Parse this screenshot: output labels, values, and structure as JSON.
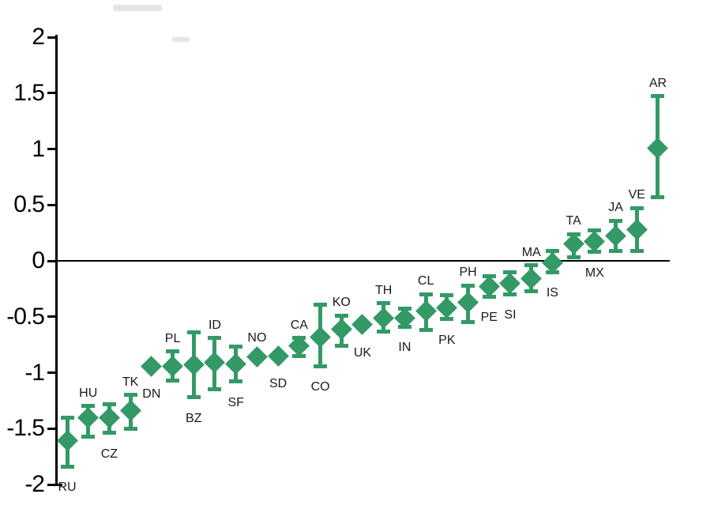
{
  "chart_data": {
    "type": "scatter",
    "title": "",
    "xlabel": "",
    "ylabel": "",
    "ylim": [
      -2,
      2
    ],
    "grid": false,
    "legend": "none",
    "zero_line": true,
    "marker": "diamond",
    "marker_color": "#339966",
    "axis_color": "#000000",
    "error_bars": "vertical confidence intervals with caps",
    "ytick_values": [
      2,
      1.5,
      1,
      0.5,
      0,
      -0.5,
      -1,
      -1.5,
      -2
    ],
    "ytick_labels": [
      "2",
      "1.5",
      "1",
      "0.5",
      "0",
      "-0.5",
      "-1",
      "-1.5",
      "-2"
    ],
    "points": [
      {
        "code": "RU",
        "value": -1.61,
        "ci_low": -1.84,
        "ci_high": -1.4,
        "label_position": "below"
      },
      {
        "code": "HU",
        "value": -1.4,
        "ci_low": -1.57,
        "ci_high": -1.3,
        "label_position": "above"
      },
      {
        "code": "CZ",
        "value": -1.4,
        "ci_low": -1.54,
        "ci_high": -1.28,
        "label_position": "below"
      },
      {
        "code": "TK",
        "value": -1.34,
        "ci_low": -1.5,
        "ci_high": -1.2,
        "label_position": "above"
      },
      {
        "code": "DN",
        "value": -0.94,
        "ci_low": null,
        "ci_high": null,
        "label_position": "below"
      },
      {
        "code": "PL",
        "value": -0.94,
        "ci_low": -1.07,
        "ci_high": -0.81,
        "label_position": "above"
      },
      {
        "code": "BZ",
        "value": -0.93,
        "ci_low": -1.22,
        "ci_high": -0.64,
        "label_position": "below"
      },
      {
        "code": "ID",
        "value": -0.91,
        "ci_low": -1.15,
        "ci_high": -0.69,
        "label_position": "above"
      },
      {
        "code": "SF",
        "value": -0.92,
        "ci_low": -1.08,
        "ci_high": -0.77,
        "label_position": "below"
      },
      {
        "code": "NO",
        "value": -0.86,
        "ci_low": null,
        "ci_high": null,
        "label_position": "above"
      },
      {
        "code": "SD",
        "value": -0.85,
        "ci_low": null,
        "ci_high": null,
        "label_position": "below"
      },
      {
        "code": "CA",
        "value": -0.76,
        "ci_low": -0.85,
        "ci_high": -0.69,
        "label_position": "above"
      },
      {
        "code": "CO",
        "value": -0.68,
        "ci_low": -0.94,
        "ci_high": -0.39,
        "label_position": "below"
      },
      {
        "code": "KO",
        "value": -0.61,
        "ci_low": -0.76,
        "ci_high": -0.49,
        "label_position": "above"
      },
      {
        "code": "UK",
        "value": -0.57,
        "ci_low": null,
        "ci_high": null,
        "label_position": "below"
      },
      {
        "code": "TH",
        "value": -0.51,
        "ci_low": -0.63,
        "ci_high": -0.38,
        "label_position": "above"
      },
      {
        "code": "IN",
        "value": -0.51,
        "ci_low": -0.59,
        "ci_high": -0.43,
        "label_position": "below"
      },
      {
        "code": "CL",
        "value": -0.45,
        "ci_low": -0.62,
        "ci_high": -0.3,
        "label_position": "above"
      },
      {
        "code": "PK",
        "value": -0.42,
        "ci_low": -0.52,
        "ci_high": -0.31,
        "label_position": "below"
      },
      {
        "code": "PH",
        "value": -0.37,
        "ci_low": -0.55,
        "ci_high": -0.22,
        "label_position": "above"
      },
      {
        "code": "PE",
        "value": -0.23,
        "ci_low": -0.32,
        "ci_high": -0.14,
        "label_position": "below"
      },
      {
        "code": "SI",
        "value": -0.2,
        "ci_low": -0.3,
        "ci_high": -0.1,
        "label_position": "below"
      },
      {
        "code": "MA",
        "value": -0.16,
        "ci_low": -0.27,
        "ci_high": -0.04,
        "label_position": "above"
      },
      {
        "code": "IS",
        "value": -0.02,
        "ci_low": -0.1,
        "ci_high": 0.09,
        "label_position": "below"
      },
      {
        "code": "TA",
        "value": 0.15,
        "ci_low": 0.03,
        "ci_high": 0.24,
        "label_position": "above"
      },
      {
        "code": "MX",
        "value": 0.17,
        "ci_low": 0.08,
        "ci_high": 0.27,
        "label_position": "below"
      },
      {
        "code": "JA",
        "value": 0.22,
        "ci_low": 0.09,
        "ci_high": 0.36,
        "label_position": "above"
      },
      {
        "code": "VE",
        "value": 0.28,
        "ci_low": 0.09,
        "ci_high": 0.47,
        "label_position": "above"
      },
      {
        "code": "AR",
        "value": 1.01,
        "ci_low": 0.57,
        "ci_high": 1.47,
        "label_position": "above"
      }
    ]
  }
}
